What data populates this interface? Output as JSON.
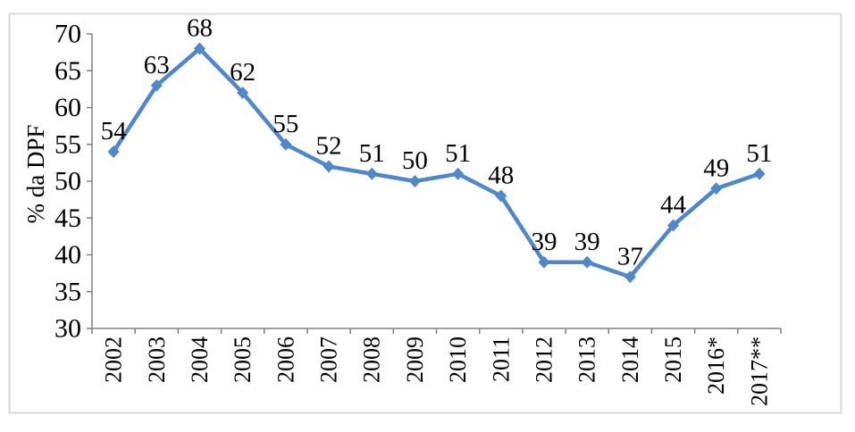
{
  "chart": {
    "background": "#FFFFFF",
    "border_color": "#D9D9D9",
    "axis_color": "#808080",
    "line_color": "#4F87C9",
    "marker_color": "#4F87C9",
    "label_color": "#000000"
  },
  "chart_data": {
    "type": "line",
    "title": "",
    "xlabel": "",
    "ylabel": "% da DPF",
    "categories": [
      "2002",
      "2003",
      "2004",
      "2005",
      "2006",
      "2007",
      "2008",
      "2009",
      "2010",
      "2011",
      "2012",
      "2013",
      "2014",
      "2015",
      "2016*",
      "2017**"
    ],
    "series": [
      {
        "name": "% da DPF",
        "values": [
          54,
          63,
          68,
          62,
          55,
          52,
          51,
          50,
          51,
          48,
          39,
          39,
          37,
          44,
          49,
          51
        ]
      }
    ],
    "data_labels_shown": true,
    "yticks": [
      30,
      35,
      40,
      45,
      50,
      55,
      60,
      65,
      70
    ],
    "ylim": [
      30,
      70
    ],
    "x_tick_rotation": -90,
    "grid": false,
    "legend": "none",
    "marker": "diamond"
  }
}
